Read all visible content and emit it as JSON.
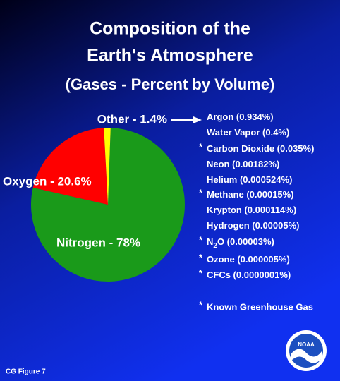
{
  "chart_data": {
    "type": "pie",
    "title": [
      "Composition of the",
      "Earth's Atmosphere",
      "(Gases - Percent by Volume)"
    ],
    "values": [
      78,
      20.6,
      1.4
    ],
    "value_labels": [
      "Nitrogen - 78%",
      "Oxygen - 20.6%",
      "Other - 1.4%"
    ],
    "colors": [
      "#1a9a1a",
      "#ff0000",
      "#ffff00"
    ],
    "other_gases": [
      {
        "text_parts": [
          "Argon (0.934%)"
        ],
        "greenhouse": false
      },
      {
        "text_parts": [
          "Water Vapor (0.4%)"
        ],
        "greenhouse": false
      },
      {
        "text_parts": [
          "Carbon Dioxide (0.035%)"
        ],
        "greenhouse": true
      },
      {
        "text_parts": [
          "Neon (0.00182%)"
        ],
        "greenhouse": false
      },
      {
        "text_parts": [
          "Helium (0.000524%)"
        ],
        "greenhouse": false
      },
      {
        "text_parts": [
          "Methane (0.00015%)"
        ],
        "greenhouse": true
      },
      {
        "text_parts": [
          "Krypton (0.000114%)"
        ],
        "greenhouse": false
      },
      {
        "text_parts": [
          "Hydrogen (0.00005%)"
        ],
        "greenhouse": false
      },
      {
        "text_parts": [
          "N",
          "2",
          "O (0.00003%)"
        ],
        "greenhouse": true
      },
      {
        "text_parts": [
          "Ozone (0.000005%)"
        ],
        "greenhouse": true
      },
      {
        "text_parts": [
          "CFCs (0.0000001%)"
        ],
        "greenhouse": true
      }
    ],
    "marker": "*",
    "footnote": "Known Greenhouse Gas",
    "figure_label": "CG Figure 7",
    "logo_text": "NOAA"
  }
}
